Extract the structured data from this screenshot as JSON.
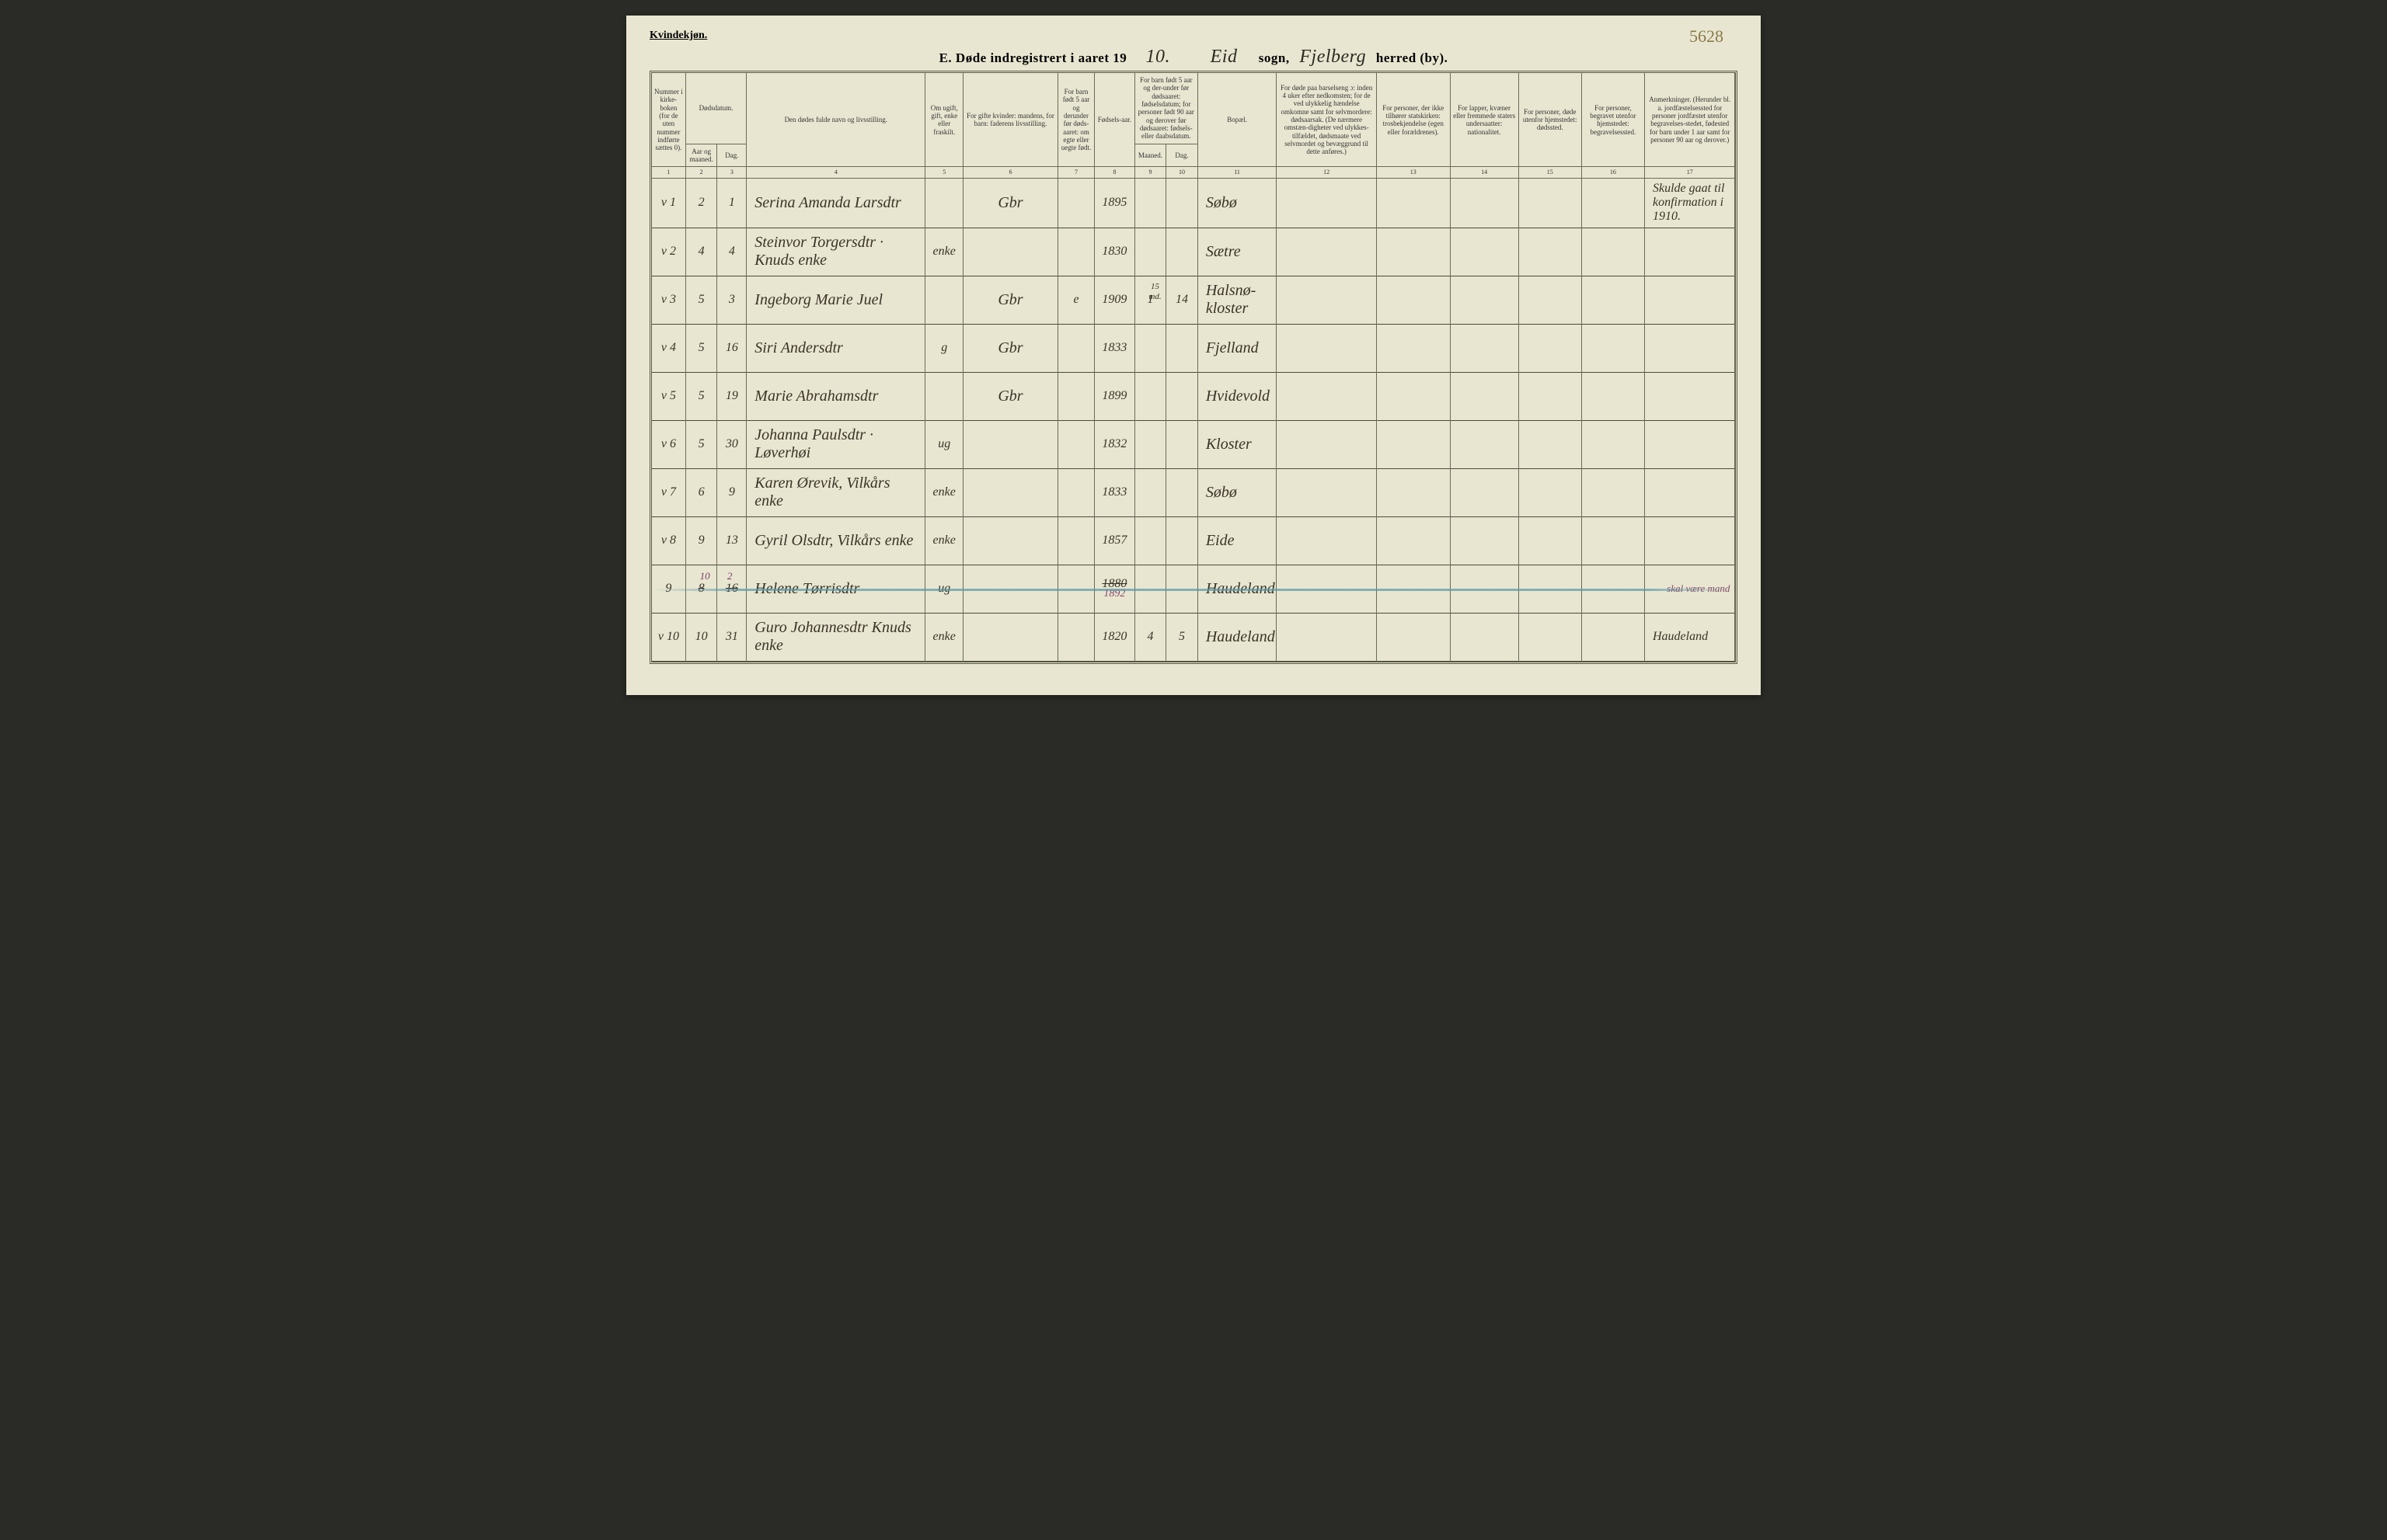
{
  "page": {
    "gender_label": "Kvindekjøn.",
    "corner_annotation": "5628",
    "title_prefix": "E.  Døde indregistrert i aaret 19",
    "year_suffix": "10.",
    "parish": "Eid",
    "label_sogn": "sogn,",
    "district": "Fjelberg",
    "label_herred": "herred (by)."
  },
  "headers": {
    "h1": "Nummer i kirke-boken (for de uten nummer indførte sættes 0).",
    "h2_top": "Dødsdatum.",
    "h2a": "Aar og maaned.",
    "h2b": "Dag.",
    "h4": "Den dødes fulde navn og livsstilling.",
    "h5": "Om ugift, gift, enke eller fraskilt.",
    "h6": "For gifte kvinder: mandens, for barn: faderens livsstilling.",
    "h7": "For barn født 5 aar og derunder før døds-aaret: om egte eller uegte født.",
    "h8": "Fødsels-aar.",
    "h9_top": "For barn født 5 aar og der-under før dødsaaret: fødselsdatum; for personer født 90 aar og derover før dødsaaret: fødsels- eller daabsdatum.",
    "h9a": "Maaned.",
    "h9b": "Dag.",
    "h11": "Bopæl.",
    "h12": "For døde paa barselseng ɔ: inden 4 uker efter nedkomsten; for de ved ulykkelig hændelse omkomne samt for selvmordere: dødsaarsak. (De nærmere omstæn-digheter ved ulykkes-tilfældet, dødsmaate ved selvmordet og bevæggrund til dette anføres.)",
    "h13": "For personer, der ikke tilhører statskirken: trosbekjendelse (egen eller forældrenes).",
    "h14": "For lapper, kvæner eller fremmede staters undersaatter: nationalitet.",
    "h15": "For personer, døde utenfor hjemstedet: dødssted.",
    "h16": "For personer, begravet utenfor hjemstedet: begravelsessted.",
    "h17": "Anmerkninger. (Herunder bl. a. jordfæstelsessted for personer jordfæstet utenfor begravelses-stedet, fødested for barn under 1 aar samt for personer 90 aar og derover.)"
  },
  "colnums": [
    "1",
    "2",
    "3",
    "4",
    "5",
    "6",
    "7",
    "8",
    "9",
    "10",
    "11",
    "12",
    "13",
    "14",
    "15",
    "16",
    "17"
  ],
  "rows": [
    {
      "check": "v",
      "num": "1",
      "month": "2",
      "day": "1",
      "name": "Serina Amanda Larsdtr",
      "status": "",
      "occ": "Gbr",
      "legit": "",
      "birth": "1895",
      "bm": "",
      "bd": "",
      "residence": "Søbø",
      "c12": "",
      "c13": "",
      "c14": "",
      "c15": "",
      "c16": "",
      "remark": "Skulde gaat til konfirmation i 1910."
    },
    {
      "check": "v",
      "num": "2",
      "month": "4",
      "day": "4",
      "name": "Steinvor Torgersdtr · Knuds enke",
      "status": "enke",
      "occ": "",
      "legit": "",
      "birth": "1830",
      "bm": "",
      "bd": "",
      "residence": "Sætre",
      "c12": "",
      "c13": "",
      "c14": "",
      "c15": "",
      "c16": "",
      "remark": ""
    },
    {
      "check": "v",
      "num": "3",
      "month": "5",
      "day": "3",
      "name": "Ingeborg Marie Juel",
      "status": "",
      "occ": "Gbr",
      "legit": "e",
      "birth": "1909",
      "bm": "1",
      "bd": "14",
      "bm_note": "15 md.",
      "residence": "Halsnø-kloster",
      "c12": "",
      "c13": "",
      "c14": "",
      "c15": "",
      "c16": "",
      "remark": ""
    },
    {
      "check": "v",
      "num": "4",
      "month": "5",
      "day": "16",
      "name": "Siri Andersdtr",
      "status": "g",
      "occ": "Gbr",
      "legit": "",
      "birth": "1833",
      "bm": "",
      "bd": "",
      "residence": "Fjelland",
      "c12": "",
      "c13": "",
      "c14": "",
      "c15": "",
      "c16": "",
      "remark": ""
    },
    {
      "check": "v",
      "num": "5",
      "month": "5",
      "day": "19",
      "name": "Marie Abrahamsdtr",
      "status": "",
      "occ": "Gbr",
      "legit": "",
      "birth": "1899",
      "bm": "",
      "bd": "",
      "residence": "Hvidevold",
      "c12": "",
      "c13": "",
      "c14": "",
      "c15": "",
      "c16": "",
      "remark": ""
    },
    {
      "check": "v",
      "num": "6",
      "month": "5",
      "day": "30",
      "name": "Johanna Paulsdtr · Løverhøi",
      "status": "ug",
      "occ": "",
      "legit": "",
      "birth": "1832",
      "bm": "",
      "bd": "",
      "residence": "Kloster",
      "c12": "",
      "c13": "",
      "c14": "",
      "c15": "",
      "c16": "",
      "remark": ""
    },
    {
      "check": "v",
      "num": "7",
      "month": "6",
      "day": "9",
      "name": "Karen Ørevik, Vilkårs enke",
      "status": "enke",
      "occ": "",
      "legit": "",
      "birth": "1833",
      "bm": "",
      "bd": "",
      "residence": "Søbø",
      "c12": "",
      "c13": "",
      "c14": "",
      "c15": "",
      "c16": "",
      "remark": ""
    },
    {
      "check": "v",
      "num": "8",
      "month": "9",
      "day": "13",
      "name": "Gyril Olsdtr, Vilkårs enke",
      "status": "enke",
      "occ": "",
      "legit": "",
      "birth": "1857",
      "bm": "",
      "bd": "",
      "residence": "Eide",
      "c12": "",
      "c13": "",
      "c14": "",
      "c15": "",
      "c16": "",
      "remark": ""
    },
    {
      "check": "",
      "num": "9",
      "month_struck": "8",
      "month_corr": "10",
      "day_struck": "16",
      "day_corr": "2",
      "name": "Helene Tørrisdtr",
      "status": "ug",
      "occ": "",
      "legit": "",
      "birth_struck": "1880",
      "birth_corr": "1892",
      "bm": "",
      "bd": "",
      "residence": "Haudeland",
      "c12": "",
      "c13": "",
      "c14": "",
      "c15": "",
      "c16": "",
      "remark": "skal være mand",
      "correction_row": true
    },
    {
      "check": "v",
      "num": "10",
      "month": "10",
      "day": "31",
      "name": "Guro Johannesdtr   Knuds enke",
      "status": "enke",
      "occ": "",
      "legit": "",
      "birth": "1820",
      "bm": "4",
      "bd": "5",
      "residence": "Haudeland",
      "c12": "",
      "c13": "",
      "c14": "",
      "c15": "",
      "c16": "",
      "remark": "Haudeland"
    }
  ]
}
